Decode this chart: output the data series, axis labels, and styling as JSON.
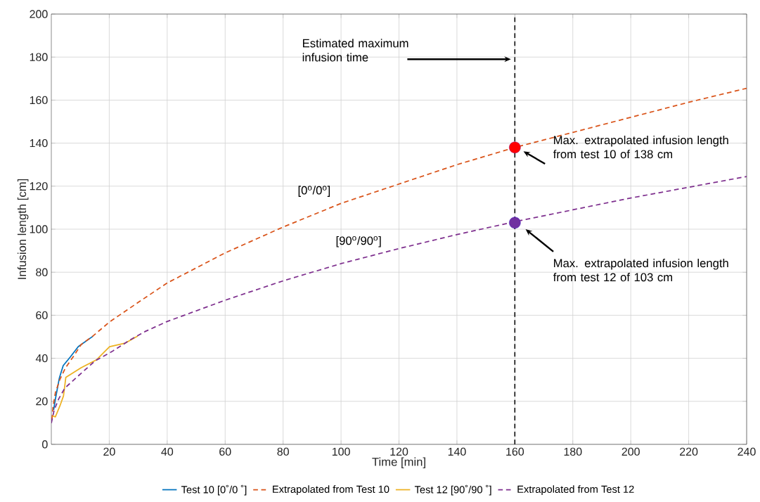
{
  "chart_data": {
    "type": "line",
    "xlabel": "Time [min]",
    "ylabel": "Infusion length [cm]",
    "xlim": [
      0,
      240
    ],
    "ylim": [
      0,
      200
    ],
    "xticks": [
      20,
      40,
      60,
      80,
      100,
      120,
      140,
      160,
      180,
      200,
      220,
      240
    ],
    "yticks": [
      0,
      20,
      40,
      60,
      80,
      100,
      120,
      140,
      160,
      180,
      200
    ],
    "grid": true,
    "legend": "bottom",
    "series": [
      {
        "name": "Test 10 [0˚/0 ˚]",
        "color": "#0072bd",
        "line_style": "solid",
        "x": [
          0.8,
          1.4,
          2.8,
          4.1,
          6.5,
          9.3,
          14.4
        ],
        "values": [
          16,
          21,
          31,
          36.6,
          40.5,
          45.4,
          50.3
        ]
      },
      {
        "name": "Extrapolated from Test 10",
        "color": "#d95319",
        "line_style": "dashed",
        "x": [
          0.2,
          0.6,
          1.4,
          2.9,
          4.9,
          7.7,
          10.3,
          14.3,
          20.1,
          30,
          40,
          60,
          80,
          100,
          120,
          140,
          160,
          180,
          200,
          220,
          240
        ],
        "values": [
          11.5,
          17.6,
          24,
          30,
          35.6,
          41,
          46.4,
          50.3,
          56.9,
          66,
          75,
          89,
          101,
          112,
          121,
          130,
          138,
          145,
          152,
          159,
          165.5
        ]
      },
      {
        "name": "Test 12 [90˚/90 ˚]",
        "color": "#edb120",
        "line_style": "solid",
        "x": [
          0.4,
          1.4,
          3.0,
          4.2,
          5.0,
          10.3,
          15.6,
          20.1,
          25.4,
          29.8
        ],
        "values": [
          13.2,
          12.8,
          18,
          22.5,
          31.1,
          35.6,
          39.3,
          45.4,
          47,
          50.3
        ]
      },
      {
        "name": "Extrapolated from Test 12",
        "color": "#7e2f8e",
        "line_style": "dashed",
        "x": [
          0,
          1.0,
          2.6,
          4.7,
          8.7,
          15.2,
          20.9,
          27.4,
          32.3,
          39.6,
          60,
          80,
          100,
          120,
          140,
          160,
          180,
          200,
          220,
          240
        ],
        "values": [
          9.9,
          16,
          21.3,
          26.2,
          31.1,
          38.9,
          43.1,
          48.7,
          52.4,
          56.9,
          67,
          76,
          84,
          91,
          97.5,
          103.5,
          109,
          114.5,
          119.5,
          124.5
        ]
      },
      {
        "type": "scatter",
        "marker": "circle",
        "color": "#ff0000",
        "x": [
          160
        ],
        "values": [
          138
        ]
      },
      {
        "type": "scatter",
        "marker": "circle",
        "color": "#7030a0",
        "x": [
          160
        ],
        "values": [
          103
        ]
      }
    ],
    "ref_lines": [
      {
        "axis": "x",
        "value": 160,
        "color": "#000000",
        "line_style": "dashed"
      }
    ],
    "annotations": [
      "Estimated maximum infusion time",
      "[0$^{o}$/0$^{o}$]",
      "[90$^{o}$/90$^{o}$]",
      "Max. extrapolated infusion length from test 10 of 138 cm",
      "Max. extrapolated infusion length from test 12 of 103 cm"
    ]
  }
}
